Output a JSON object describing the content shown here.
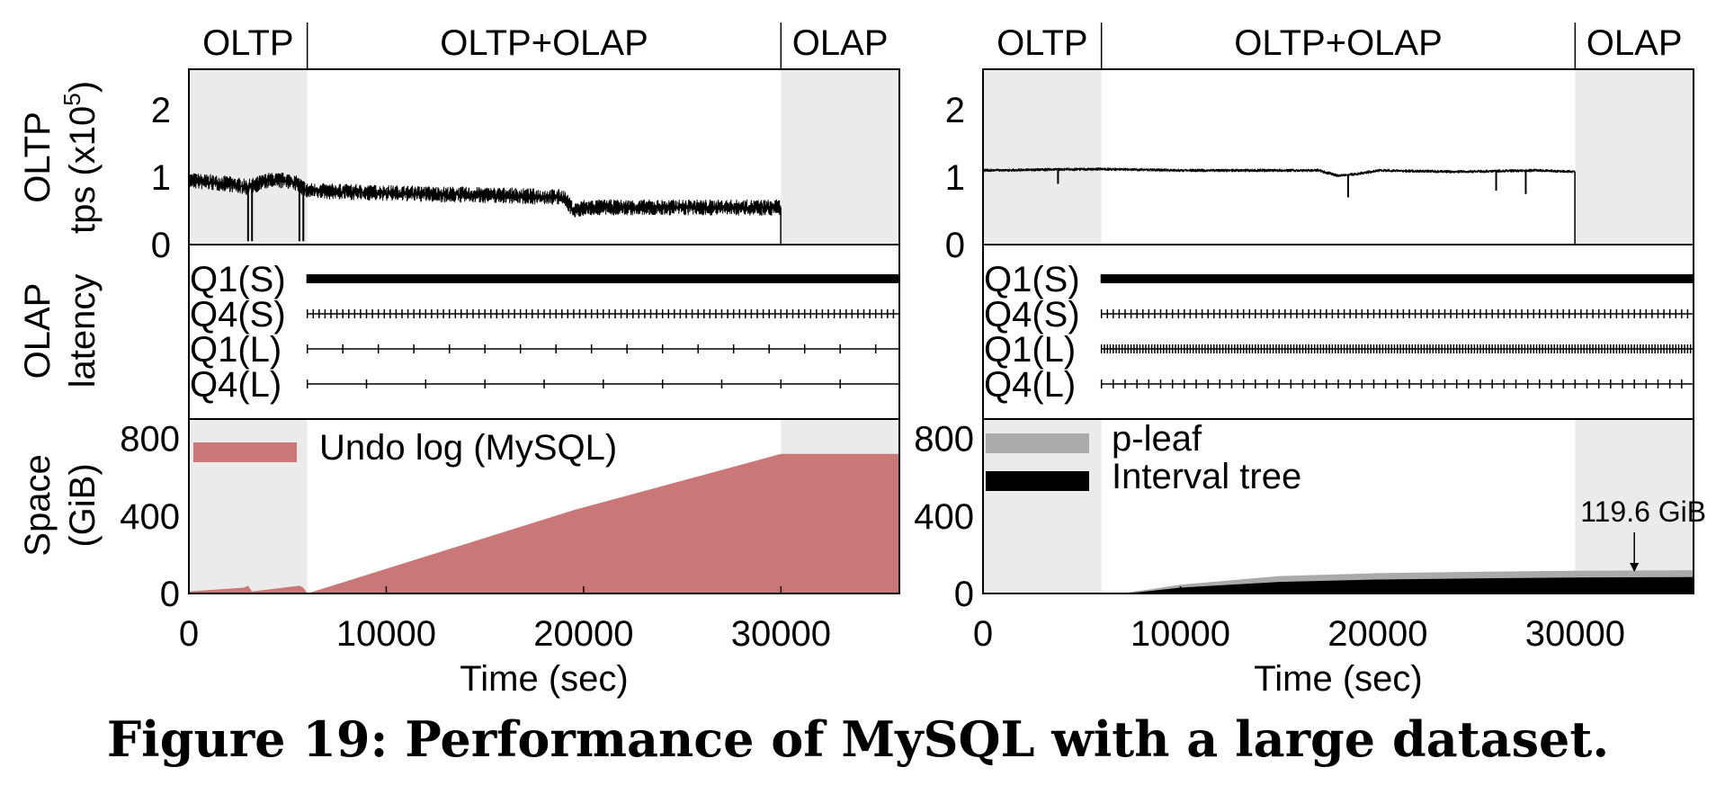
{
  "caption": "Figure 19: Performance of MySQL with a large dataset.",
  "phases": [
    {
      "label": "OLTP",
      "start": 0,
      "end": 6000
    },
    {
      "label": "OLTP+OLAP",
      "start": 6000,
      "end": 30000
    },
    {
      "label": "OLAP",
      "start": 30000,
      "end": 36000
    }
  ],
  "colors": {
    "phase_shade": "#ebebeb",
    "undo_log": "#c97777",
    "p_leaf": "#aaaaaa",
    "interval_tree": "#000000"
  },
  "axis_labels": {
    "oltp_line1": "OLTP",
    "oltp_line2_prefix": "tps (x10",
    "oltp_line2_exp": "5",
    "oltp_line2_suffix": ")",
    "olap_line1": "OLAP",
    "olap_line2": "latency",
    "space_line1": "Space",
    "space_line2": "(GiB)",
    "x_label": "Time (sec)"
  },
  "chart_data": [
    {
      "type": "line",
      "panel": "left",
      "xlabel": "Time (sec)",
      "xlim": [
        0,
        36000
      ],
      "xticks": [
        "0",
        "10000",
        "20000",
        "30000"
      ],
      "oltp": {
        "ylim": [
          0,
          2.6
        ],
        "yticks": [
          "0",
          "1",
          "2"
        ],
        "x": [
          0,
          2000,
          3000,
          4000,
          5000,
          5500,
          6000,
          8000,
          12000,
          16000,
          19000,
          19500,
          20000,
          24000,
          28000,
          29990
        ],
        "y": [
          0.95,
          0.9,
          0.85,
          0.95,
          0.95,
          0.9,
          0.8,
          0.78,
          0.75,
          0.73,
          0.7,
          0.5,
          0.55,
          0.55,
          0.55,
          0.55
        ],
        "dips": [
          [
            3000,
            0.05
          ],
          [
            3200,
            0.05
          ],
          [
            5600,
            0.05
          ],
          [
            5800,
            0.05
          ]
        ]
      },
      "olap": {
        "queries": [
          {
            "name": "Q1(S)",
            "start": 6000,
            "end": 36000,
            "interval": 60
          },
          {
            "name": "Q4(S)",
            "start": 6000,
            "end": 36000,
            "interval": 300
          },
          {
            "name": "Q1(L)",
            "start": 6000,
            "end": 36000,
            "interval": 1800
          },
          {
            "name": "Q4(L)",
            "start": 6000,
            "end": 36000,
            "interval": 3000
          }
        ]
      },
      "space": {
        "ylim": [
          0,
          900
        ],
        "yticks": [
          "0",
          "400",
          "800"
        ],
        "legend": [
          "Undo log (MySQL)"
        ],
        "series": [
          {
            "name": "Undo log (MySQL)",
            "x": [
              0,
              2800,
              3000,
              3200,
              5600,
              5800,
              6000,
              19500,
              30000,
              36000
            ],
            "y": [
              10,
              30,
              40,
              10,
              40,
              30,
              0,
              430,
              720,
              720
            ]
          }
        ]
      }
    },
    {
      "type": "line",
      "panel": "right",
      "xlabel": "Time (sec)",
      "xlim": [
        0,
        36000
      ],
      "xticks": [
        "0",
        "10000",
        "20000",
        "30000"
      ],
      "oltp": {
        "ylim": [
          0,
          2.6
        ],
        "yticks": [
          "0",
          "1",
          "2"
        ],
        "x": [
          0,
          6000,
          10000,
          14000,
          17000,
          18000,
          19000,
          20000,
          24000,
          28000,
          29990
        ],
        "y": [
          1.1,
          1.12,
          1.1,
          1.1,
          1.1,
          1.02,
          1.05,
          1.1,
          1.08,
          1.1,
          1.08
        ],
        "dips": [
          [
            3800,
            0.9
          ],
          [
            18500,
            0.7
          ],
          [
            26000,
            0.8
          ],
          [
            27500,
            0.75
          ]
        ]
      },
      "olap": {
        "queries": [
          {
            "name": "Q1(S)",
            "start": 6000,
            "end": 36000,
            "interval": 60
          },
          {
            "name": "Q4(S)",
            "start": 6000,
            "end": 36000,
            "interval": 300
          },
          {
            "name": "Q1(L)",
            "start": 6000,
            "end": 36000,
            "interval": 150
          },
          {
            "name": "Q4(L)",
            "start": 6000,
            "end": 36000,
            "interval": 600
          }
        ]
      },
      "space": {
        "ylim": [
          0,
          900
        ],
        "yticks": [
          "0",
          "400",
          "800"
        ],
        "legend": [
          "p-leaf",
          "Interval tree"
        ],
        "series": [
          {
            "name": "p-leaf",
            "x": [
              0,
              7000,
              8000,
              10000,
              15000,
              20000,
              25000,
              30000,
              36000
            ],
            "y": [
              0,
              0,
              15,
              45,
              90,
              105,
              112,
              117,
              120
            ]
          },
          {
            "name": "Interval tree",
            "x": [
              0,
              7000,
              8000,
              10000,
              15000,
              20000,
              25000,
              30000,
              36000
            ],
            "y": [
              0,
              0,
              8,
              30,
              60,
              72,
              78,
              82,
              85
            ]
          }
        ],
        "annotation": {
          "text": "119.6 GiB",
          "x": 33000,
          "y": 119.6
        }
      }
    }
  ]
}
